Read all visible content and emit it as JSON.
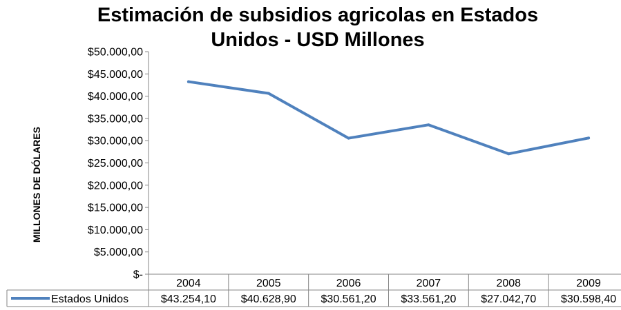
{
  "chart_data": {
    "type": "line",
    "title_lines": [
      "Estimación de subsidios agricolas en Estados",
      "Unidos - USD Millones"
    ],
    "ylabel": "MILLONES DE DÓLARES",
    "xlabel": "",
    "categories": [
      "2004",
      "2005",
      "2006",
      "2007",
      "2008",
      "2009"
    ],
    "series": [
      {
        "name": "Estados Unidos",
        "values": [
          43254.1,
          40628.9,
          30561.2,
          33561.2,
          27042.7,
          30598.4
        ],
        "value_labels": [
          "$43.254,10",
          "$40.628,90",
          "$30.561,20",
          "$33.561,20",
          "$27.042,70",
          "$30.598,40"
        ],
        "color": "#4F81BD"
      }
    ],
    "ylim": [
      0,
      50000
    ],
    "yticks": [
      0,
      5000,
      10000,
      15000,
      20000,
      25000,
      30000,
      35000,
      40000,
      45000,
      50000
    ],
    "ytick_labels": [
      "$-",
      "$5.000,00",
      "$10.000,00",
      "$15.000,00",
      "$20.000,00",
      "$25.000,00",
      "$30.000,00",
      "$35.000,00",
      "$40.000,00",
      "$45.000,00",
      "$50.000,00"
    ],
    "grid": false,
    "legend": "data-table"
  }
}
